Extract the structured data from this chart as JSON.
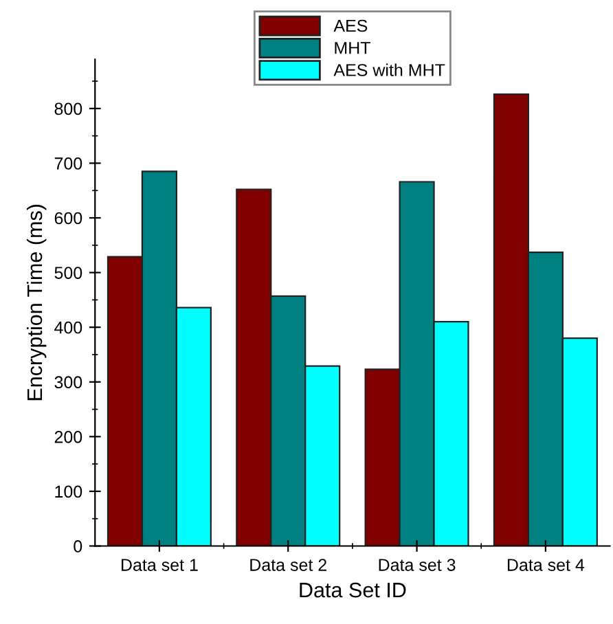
{
  "chart_data": {
    "type": "bar",
    "xlabel": "Data Set ID",
    "ylabel": "Encryption Time (ms)",
    "categories": [
      "Data set 1",
      "Data set 2",
      "Data set 3",
      "Data set 4"
    ],
    "series": [
      {
        "name": "AES",
        "color": "#800000",
        "values": [
          529,
          652,
          323,
          826
        ]
      },
      {
        "name": "MHT",
        "color": "#008080",
        "values": [
          685,
          457,
          666,
          537
        ]
      },
      {
        "name": "AES with MHT",
        "color": "#00ffff",
        "values": [
          436,
          329,
          410,
          380
        ]
      }
    ],
    "ylim": [
      0,
      890
    ],
    "yticks": [
      0,
      100,
      200,
      300,
      400,
      500,
      600,
      700,
      800
    ],
    "grid": false,
    "legend": "top"
  }
}
